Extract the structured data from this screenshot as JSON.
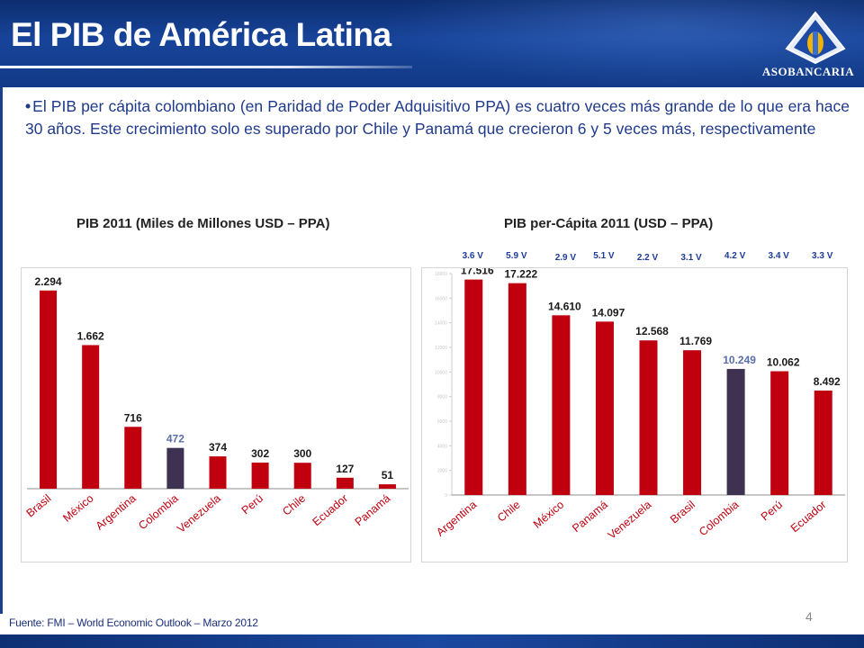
{
  "header": {
    "title": "El PIB de América Latina",
    "logo_text": "ASOBANCARIA"
  },
  "bullet_text": "El PIB per cápita colombiano (en Paridad de Poder Adquisitivo PPA) es cuatro veces más grande de lo que era hace 30 años. Este crecimiento solo es superado por Chile y Panamá que crecieron 6 y 5 veces más, respectivamente",
  "colors": {
    "bar_red": "#c0000e",
    "bar_highlight": "#3f3151",
    "header_blue": "#17449a",
    "text_blue": "#1f3a8a"
  },
  "chart_data": [
    {
      "type": "bar",
      "title": "PIB  2011 (Miles de Millones USD – PPA)",
      "categories": [
        "Brasil",
        "México",
        "Argentina",
        "Colombia",
        "Venezuela",
        "Perú",
        "Chile",
        "Ecuador",
        "Panamá"
      ],
      "values": [
        2294,
        1662,
        716,
        472,
        374,
        302,
        300,
        127,
        51
      ],
      "value_labels": [
        "2.294",
        "1.662",
        "716",
        "472",
        "374",
        "302",
        "300",
        "127",
        "51"
      ],
      "highlight": "Colombia",
      "ylim": [
        0,
        2500
      ]
    },
    {
      "type": "bar",
      "title": "PIB  per-Cápita 2011 (USD – PPA)",
      "categories": [
        "Argentina",
        "Chile",
        "México",
        "Panamá",
        "Venezuela",
        "Brasil",
        "Colombia",
        "Perú",
        "Ecuador"
      ],
      "values": [
        17516,
        17222,
        14610,
        14097,
        12568,
        11769,
        10249,
        10062,
        8492
      ],
      "value_labels": [
        "17.516",
        "17.222",
        "14.610",
        "14.097",
        "12.568",
        "11.769",
        "10.249",
        "10.062",
        "8.492"
      ],
      "growth_labels": [
        "3.6 V",
        "5.9 V",
        "2.9 V",
        "5.1 V",
        "2.2 V",
        "3.1 V",
        "4.2 V",
        "3.4 V",
        "3.3 V"
      ],
      "highlight": "Colombia",
      "ylim": [
        0,
        18000
      ],
      "y_ticks": [
        0,
        2000,
        4000,
        6000,
        8000,
        10000,
        12000,
        14000,
        16000,
        18000
      ]
    }
  ],
  "footer": {
    "source": "Fuente: FMI – World Economic Outlook – Marzo 2012",
    "page_number": "4"
  }
}
